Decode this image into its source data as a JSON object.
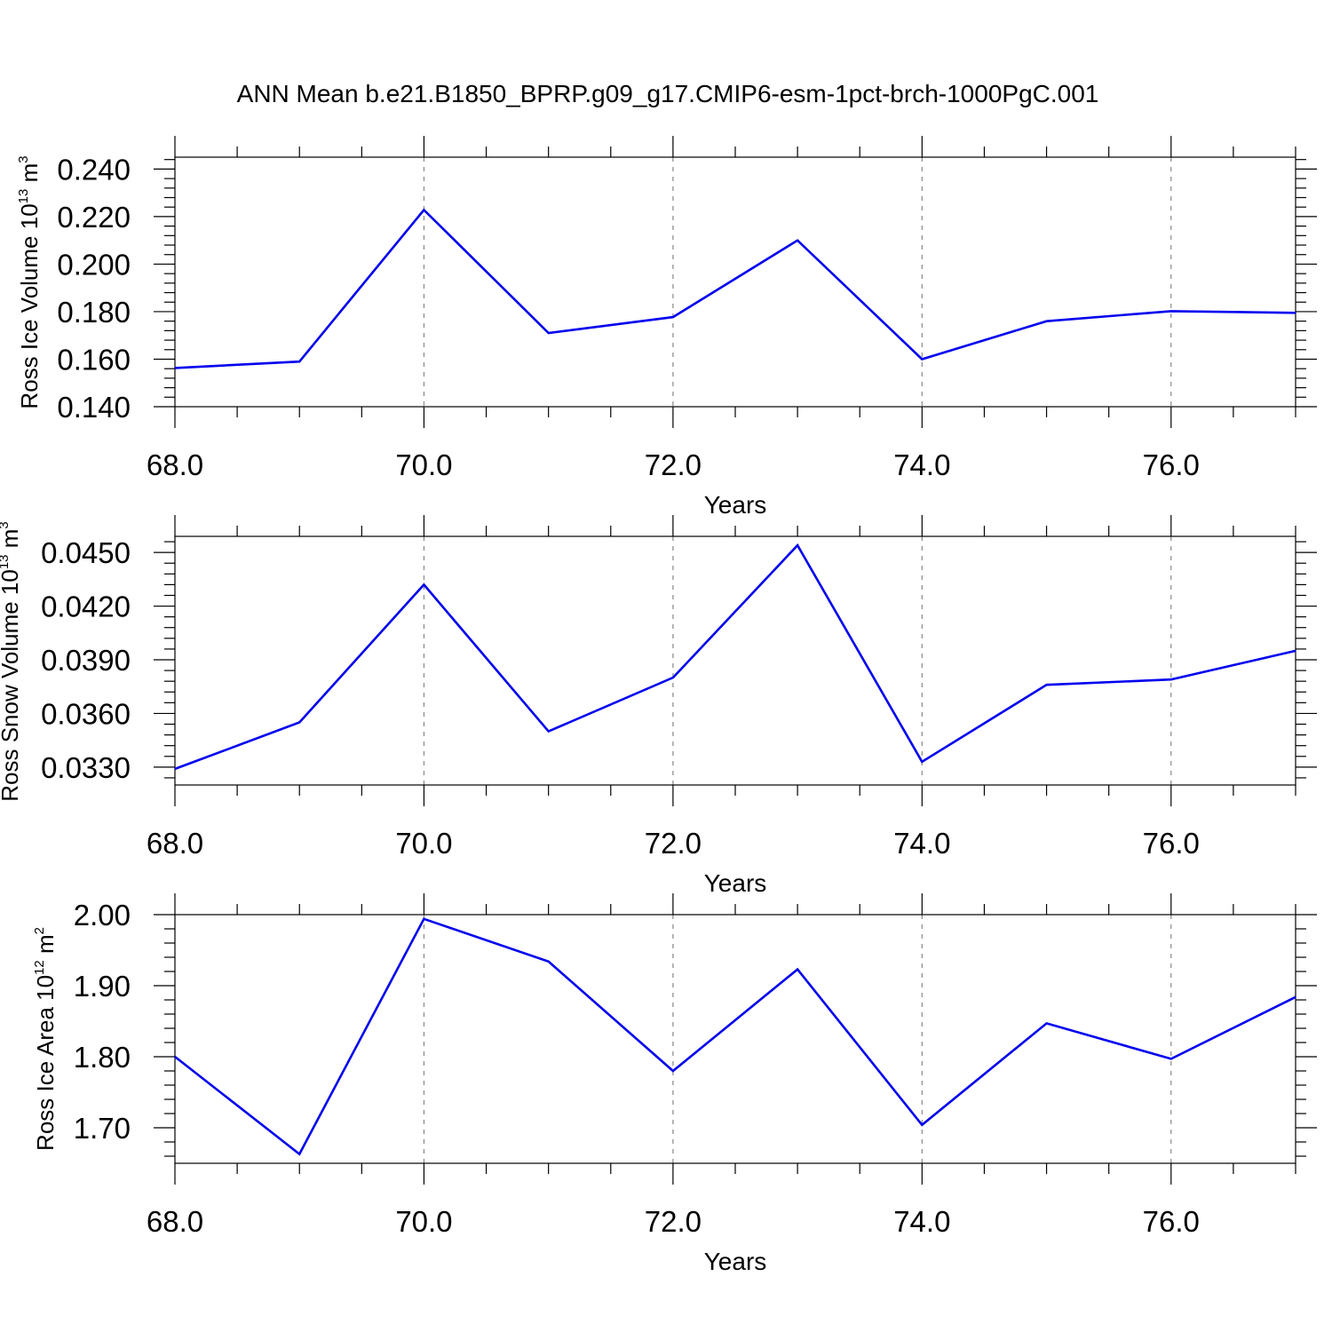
{
  "figure": {
    "title": "ANN Mean b.e21.B1850_BPRP.g09_g17.CMIP6-esm-1pct-brch-1000PgC.001"
  },
  "chart_data": [
    {
      "type": "line",
      "title": "ANN Mean b.e21.B1850_BPRP.g09_g17.CMIP6-esm-1pct-brch-1000PgC.001",
      "xlabel": "Years",
      "ylabel": {
        "text": "Ross Ice Volume 10",
        "exp": "13",
        "unit": " m",
        "unit_exp": "3"
      },
      "xlim": [
        68,
        77
      ],
      "ylim": [
        0.14,
        0.245
      ],
      "xticks": [
        68,
        70,
        72,
        74,
        76
      ],
      "xtick_labels": [
        "68.0",
        "70.0",
        "72.0",
        "74.0",
        "76.0"
      ],
      "yticks": [
        0.14,
        0.16,
        0.18,
        0.2,
        0.22,
        0.24
      ],
      "ytick_labels": [
        "0.140",
        "0.160",
        "0.180",
        "0.200",
        "0.220",
        "0.240"
      ],
      "grid": "vertical dashed at major x ticks",
      "color": "#0000ee",
      "x": [
        68,
        69,
        70,
        71,
        72,
        73,
        74,
        75,
        76,
        77
      ],
      "y": [
        0.1563,
        0.159,
        0.2228,
        0.171,
        0.1777,
        0.21,
        0.16,
        0.176,
        0.1802,
        0.1795
      ]
    },
    {
      "type": "line",
      "xlabel": "Years",
      "ylabel": {
        "text": "Ross Snow Volume 10",
        "exp": "13",
        "unit": " m",
        "unit_exp": "3"
      },
      "xlim": [
        68,
        77
      ],
      "ylim": [
        0.032,
        0.0459
      ],
      "xticks": [
        68,
        70,
        72,
        74,
        76
      ],
      "xtick_labels": [
        "68.0",
        "70.0",
        "72.0",
        "74.0",
        "76.0"
      ],
      "yticks": [
        0.033,
        0.036,
        0.039,
        0.042,
        0.045
      ],
      "ytick_labels": [
        "0.0330",
        "0.0360",
        "0.0390",
        "0.0420",
        "0.0450"
      ],
      "grid": "vertical dashed at major x ticks",
      "color": "#0000ee",
      "x": [
        68,
        69,
        70,
        71,
        72,
        73,
        74,
        75,
        76,
        77
      ],
      "y": [
        0.0329,
        0.0355,
        0.0432,
        0.035,
        0.038,
        0.0454,
        0.0333,
        0.0376,
        0.0379,
        0.0395
      ]
    },
    {
      "type": "line",
      "xlabel": "Years",
      "ylabel": {
        "text": "Ross Ice Area 10",
        "exp": "12",
        "unit": " m",
        "unit_exp": "2"
      },
      "xlim": [
        68,
        77
      ],
      "ylim": [
        1.65,
        2.0
      ],
      "xticks": [
        68,
        70,
        72,
        74,
        76
      ],
      "xtick_labels": [
        "68.0",
        "70.0",
        "72.0",
        "74.0",
        "76.0"
      ],
      "yticks": [
        1.7,
        1.8,
        1.9,
        2.0
      ],
      "ytick_labels": [
        "1.70",
        "1.80",
        "1.90",
        "2.00"
      ],
      "grid": "vertical dashed at major x ticks",
      "color": "#0000ee",
      "x": [
        68,
        69,
        70,
        71,
        72,
        73,
        74,
        75,
        76,
        77
      ],
      "y": [
        1.8,
        1.663,
        1.994,
        1.934,
        1.78,
        1.923,
        1.704,
        1.847,
        1.797,
        1.884
      ]
    }
  ]
}
